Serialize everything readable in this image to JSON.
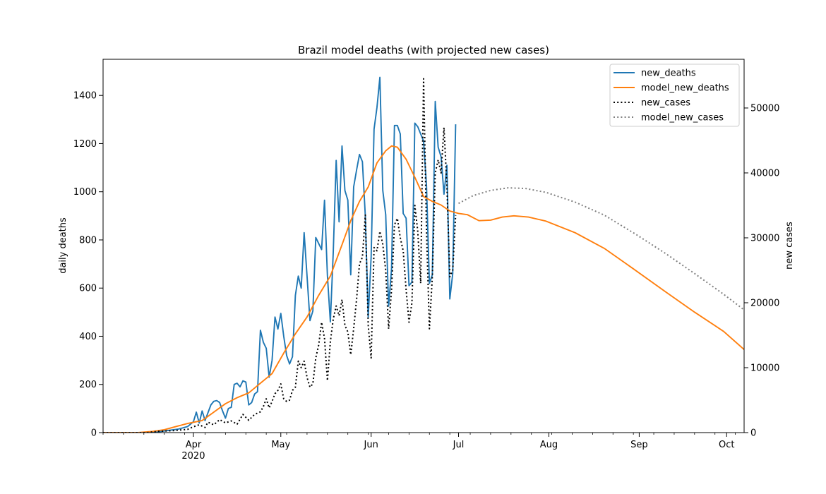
{
  "chart_data": {
    "type": "line",
    "title": "Brazil model deaths (with projected new cases)",
    "ylabel_left": "daily deaths",
    "ylabel_right": "new cases",
    "x_range": [
      "2020-03-01",
      "2020-10-07"
    ],
    "ylim_left": [
      0,
      1550
    ],
    "ylim_right": [
      0,
      57500
    ],
    "x_ticks": [
      {
        "date": "2020-04-01",
        "label": "Apr",
        "sublabel": "2020"
      },
      {
        "date": "2020-05-01",
        "label": "May",
        "sublabel": ""
      },
      {
        "date": "2020-06-01",
        "label": "Jun",
        "sublabel": ""
      },
      {
        "date": "2020-07-01",
        "label": "Jul",
        "sublabel": ""
      },
      {
        "date": "2020-08-01",
        "label": "Aug",
        "sublabel": ""
      },
      {
        "date": "2020-09-01",
        "label": "Sep",
        "sublabel": ""
      },
      {
        "date": "2020-10-01",
        "label": "Oct",
        "sublabel": ""
      }
    ],
    "y_left_ticks": [
      "0",
      "200",
      "400",
      "600",
      "800",
      "1000",
      "1200",
      "1400"
    ],
    "y_right_ticks": [
      "0",
      "10000",
      "20000",
      "30000",
      "40000",
      "50000"
    ],
    "legend_position": "top-right",
    "series": [
      {
        "name": "new_deaths",
        "axis": "left",
        "color": "#1f77b4",
        "style": "solid",
        "points": [
          [
            "2020-03-01",
            0
          ],
          [
            "2020-03-16",
            0
          ],
          [
            "2020-03-21",
            5
          ],
          [
            "2020-03-24",
            10
          ],
          [
            "2020-03-27",
            15
          ],
          [
            "2020-03-30",
            25
          ],
          [
            "2020-04-01",
            45
          ],
          [
            "2020-04-02",
            85
          ],
          [
            "2020-04-03",
            40
          ],
          [
            "2020-04-04",
            90
          ],
          [
            "2020-04-05",
            50
          ],
          [
            "2020-04-07",
            115
          ],
          [
            "2020-04-08",
            130
          ],
          [
            "2020-04-09",
            133
          ],
          [
            "2020-04-10",
            125
          ],
          [
            "2020-04-11",
            90
          ],
          [
            "2020-04-12",
            60
          ],
          [
            "2020-04-13",
            100
          ],
          [
            "2020-04-14",
            105
          ],
          [
            "2020-04-15",
            200
          ],
          [
            "2020-04-16",
            205
          ],
          [
            "2020-04-17",
            190
          ],
          [
            "2020-04-18",
            215
          ],
          [
            "2020-04-19",
            210
          ],
          [
            "2020-04-20",
            115
          ],
          [
            "2020-04-21",
            125
          ],
          [
            "2020-04-22",
            160
          ],
          [
            "2020-04-23",
            170
          ],
          [
            "2020-04-24",
            425
          ],
          [
            "2020-04-25",
            375
          ],
          [
            "2020-04-26",
            350
          ],
          [
            "2020-04-27",
            230
          ],
          [
            "2020-04-28",
            300
          ],
          [
            "2020-04-29",
            480
          ],
          [
            "2020-04-30",
            430
          ],
          [
            "2020-05-01",
            495
          ],
          [
            "2020-05-02",
            400
          ],
          [
            "2020-05-03",
            320
          ],
          [
            "2020-05-04",
            285
          ],
          [
            "2020-05-05",
            315
          ],
          [
            "2020-05-06",
            570
          ],
          [
            "2020-05-07",
            650
          ],
          [
            "2020-05-08",
            600
          ],
          [
            "2020-05-09",
            830
          ],
          [
            "2020-05-10",
            650
          ],
          [
            "2020-05-11",
            465
          ],
          [
            "2020-05-12",
            505
          ],
          [
            "2020-05-13",
            810
          ],
          [
            "2020-05-14",
            785
          ],
          [
            "2020-05-15",
            760
          ],
          [
            "2020-05-16",
            965
          ],
          [
            "2020-05-17",
            650
          ],
          [
            "2020-05-18",
            460
          ],
          [
            "2020-05-19",
            750
          ],
          [
            "2020-05-20",
            1130
          ],
          [
            "2020-05-21",
            875
          ],
          [
            "2020-05-22",
            1190
          ],
          [
            "2020-05-23",
            1005
          ],
          [
            "2020-05-24",
            965
          ],
          [
            "2020-05-25",
            655
          ],
          [
            "2020-05-26",
            1020
          ],
          [
            "2020-05-27",
            1090
          ],
          [
            "2020-05-28",
            1155
          ],
          [
            "2020-05-29",
            1125
          ],
          [
            "2020-05-30",
            900
          ],
          [
            "2020-05-31",
            480
          ],
          [
            "2020-06-01",
            730
          ],
          [
            "2020-06-02",
            1260
          ],
          [
            "2020-06-03",
            1350
          ],
          [
            "2020-06-04",
            1475
          ],
          [
            "2020-06-05",
            1005
          ],
          [
            "2020-06-06",
            905
          ],
          [
            "2020-06-07",
            525
          ],
          [
            "2020-06-08",
            680
          ],
          [
            "2020-06-09",
            1275
          ],
          [
            "2020-06-10",
            1275
          ],
          [
            "2020-06-11",
            1240
          ],
          [
            "2020-06-12",
            910
          ],
          [
            "2020-06-13",
            890
          ],
          [
            "2020-06-14",
            610
          ],
          [
            "2020-06-15",
            625
          ],
          [
            "2020-06-16",
            1285
          ],
          [
            "2020-06-17",
            1270
          ],
          [
            "2020-06-18",
            1240
          ],
          [
            "2020-06-19",
            1210
          ],
          [
            "2020-06-20",
            1025
          ],
          [
            "2020-06-21",
            620
          ],
          [
            "2020-06-22",
            655
          ],
          [
            "2020-06-23",
            1375
          ],
          [
            "2020-06-24",
            1185
          ],
          [
            "2020-06-25",
            1145
          ],
          [
            "2020-06-26",
            990
          ],
          [
            "2020-06-27",
            1110
          ],
          [
            "2020-06-28",
            555
          ],
          [
            "2020-06-29",
            660
          ],
          [
            "2020-06-30",
            1280
          ]
        ]
      },
      {
        "name": "model_new_deaths",
        "axis": "left",
        "color": "#ff7f0e",
        "style": "solid",
        "points": [
          [
            "2020-03-01",
            0
          ],
          [
            "2020-03-13",
            0
          ],
          [
            "2020-03-18",
            5
          ],
          [
            "2020-03-22",
            12
          ],
          [
            "2020-03-26",
            25
          ],
          [
            "2020-03-30",
            38
          ],
          [
            "2020-04-04",
            50
          ],
          [
            "2020-04-08",
            85
          ],
          [
            "2020-04-12",
            120
          ],
          [
            "2020-04-16",
            145
          ],
          [
            "2020-04-20",
            165
          ],
          [
            "2020-04-24",
            205
          ],
          [
            "2020-04-28",
            245
          ],
          [
            "2020-05-02",
            330
          ],
          [
            "2020-05-06",
            410
          ],
          [
            "2020-05-10",
            480
          ],
          [
            "2020-05-14",
            570
          ],
          [
            "2020-05-18",
            650
          ],
          [
            "2020-05-22",
            780
          ],
          [
            "2020-05-25",
            880
          ],
          [
            "2020-05-28",
            960
          ],
          [
            "2020-05-31",
            1020
          ],
          [
            "2020-06-03",
            1120
          ],
          [
            "2020-06-06",
            1170
          ],
          [
            "2020-06-08",
            1190
          ],
          [
            "2020-06-10",
            1185
          ],
          [
            "2020-06-13",
            1135
          ],
          [
            "2020-06-16",
            1060
          ],
          [
            "2020-06-19",
            980
          ],
          [
            "2020-06-22",
            960
          ],
          [
            "2020-06-25",
            945
          ],
          [
            "2020-06-28",
            920
          ],
          [
            "2020-07-01",
            910
          ],
          [
            "2020-07-04",
            905
          ],
          [
            "2020-07-08",
            880
          ],
          [
            "2020-07-12",
            882
          ],
          [
            "2020-07-16",
            895
          ],
          [
            "2020-07-20",
            900
          ],
          [
            "2020-07-25",
            895
          ],
          [
            "2020-07-31",
            878
          ],
          [
            "2020-08-10",
            830
          ],
          [
            "2020-08-20",
            765
          ],
          [
            "2020-08-30",
            680
          ],
          [
            "2020-09-10",
            585
          ],
          [
            "2020-09-20",
            500
          ],
          [
            "2020-09-30",
            420
          ],
          [
            "2020-10-07",
            345
          ]
        ]
      },
      {
        "name": "new_cases",
        "axis": "right",
        "color": "#000000",
        "style": "dotted",
        "points": [
          [
            "2020-03-01",
            0
          ],
          [
            "2020-03-16",
            0
          ],
          [
            "2020-03-20",
            200
          ],
          [
            "2020-03-25",
            300
          ],
          [
            "2020-03-30",
            500
          ],
          [
            "2020-04-01",
            900
          ],
          [
            "2020-04-03",
            1200
          ],
          [
            "2020-04-05",
            800
          ],
          [
            "2020-04-06",
            1600
          ],
          [
            "2020-04-08",
            1200
          ],
          [
            "2020-04-10",
            2000
          ],
          [
            "2020-04-12",
            1500
          ],
          [
            "2020-04-14",
            1800
          ],
          [
            "2020-04-16",
            1300
          ],
          [
            "2020-04-18",
            2800
          ],
          [
            "2020-04-20",
            1900
          ],
          [
            "2020-04-22",
            2800
          ],
          [
            "2020-04-24",
            3200
          ],
          [
            "2020-04-25",
            4000
          ],
          [
            "2020-04-26",
            5200
          ],
          [
            "2020-04-27",
            3800
          ],
          [
            "2020-04-28",
            4800
          ],
          [
            "2020-04-29",
            6000
          ],
          [
            "2020-04-30",
            6500
          ],
          [
            "2020-05-01",
            7500
          ],
          [
            "2020-05-02",
            5200
          ],
          [
            "2020-05-03",
            4800
          ],
          [
            "2020-05-04",
            5000
          ],
          [
            "2020-05-05",
            6500
          ],
          [
            "2020-05-06",
            7000
          ],
          [
            "2020-05-07",
            11000
          ],
          [
            "2020-05-08",
            10000
          ],
          [
            "2020-05-09",
            11000
          ],
          [
            "2020-05-10",
            8500
          ],
          [
            "2020-05-11",
            7000
          ],
          [
            "2020-05-12",
            7500
          ],
          [
            "2020-05-13",
            11500
          ],
          [
            "2020-05-14",
            13500
          ],
          [
            "2020-05-15",
            17000
          ],
          [
            "2020-05-16",
            14500
          ],
          [
            "2020-05-17",
            8000
          ],
          [
            "2020-05-18",
            14000
          ],
          [
            "2020-05-19",
            17500
          ],
          [
            "2020-05-20",
            19500
          ],
          [
            "2020-05-21",
            18000
          ],
          [
            "2020-05-22",
            20500
          ],
          [
            "2020-05-23",
            16500
          ],
          [
            "2020-05-24",
            15500
          ],
          [
            "2020-05-25",
            12000
          ],
          [
            "2020-05-26",
            16000
          ],
          [
            "2020-05-27",
            20500
          ],
          [
            "2020-05-28",
            26000
          ],
          [
            "2020-05-29",
            27000
          ],
          [
            "2020-05-30",
            33500
          ],
          [
            "2020-05-31",
            16500
          ],
          [
            "2020-06-01",
            11500
          ],
          [
            "2020-06-02",
            28500
          ],
          [
            "2020-06-03",
            28000
          ],
          [
            "2020-06-04",
            31000
          ],
          [
            "2020-06-05",
            29000
          ],
          [
            "2020-06-06",
            25000
          ],
          [
            "2020-06-07",
            16000
          ],
          [
            "2020-06-08",
            22000
          ],
          [
            "2020-06-09",
            32000
          ],
          [
            "2020-06-10",
            33000
          ],
          [
            "2020-06-11",
            30000
          ],
          [
            "2020-06-12",
            28000
          ],
          [
            "2020-06-13",
            22000
          ],
          [
            "2020-06-14",
            17000
          ],
          [
            "2020-06-15",
            20000
          ],
          [
            "2020-06-16",
            35000
          ],
          [
            "2020-06-17",
            31000
          ],
          [
            "2020-06-18",
            23000
          ],
          [
            "2020-06-19",
            54500
          ],
          [
            "2020-06-20",
            31000
          ],
          [
            "2020-06-21",
            16000
          ],
          [
            "2020-06-22",
            24000
          ],
          [
            "2020-06-23",
            40000
          ],
          [
            "2020-06-24",
            42000
          ],
          [
            "2020-06-25",
            40000
          ],
          [
            "2020-06-26",
            47000
          ],
          [
            "2020-06-27",
            38000
          ],
          [
            "2020-06-28",
            24000
          ],
          [
            "2020-06-29",
            25000
          ],
          [
            "2020-06-30",
            33500
          ]
        ]
      },
      {
        "name": "model_new_cases",
        "axis": "right",
        "color": "#808080",
        "style": "dotted",
        "points": [
          [
            "2020-07-01",
            35300
          ],
          [
            "2020-07-06",
            36500
          ],
          [
            "2020-07-12",
            37300
          ],
          [
            "2020-07-18",
            37700
          ],
          [
            "2020-07-24",
            37600
          ],
          [
            "2020-07-31",
            37000
          ],
          [
            "2020-08-10",
            35500
          ],
          [
            "2020-08-20",
            33500
          ],
          [
            "2020-08-31",
            30500
          ],
          [
            "2020-09-10",
            27600
          ],
          [
            "2020-09-20",
            24500
          ],
          [
            "2020-09-30",
            21300
          ],
          [
            "2020-10-07",
            18900
          ]
        ]
      }
    ]
  }
}
